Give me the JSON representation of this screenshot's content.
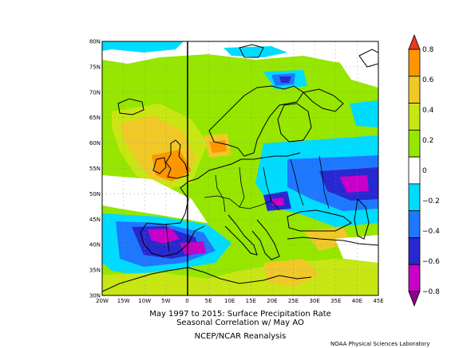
{
  "caption": {
    "line1": "May 1997 to 2015: Surface Precipitation Rate",
    "line2": "Seasonal Correlation w/ May AO",
    "line3": "NCEP/NCAR Reanalysis"
  },
  "credit": "NOAA Physical Sciences Laboratory",
  "map": {
    "lat_labels": [
      "80N",
      "75N",
      "70N",
      "65N",
      "60N",
      "55N",
      "50N",
      "45N",
      "40N",
      "35N",
      "30N"
    ],
    "lon_labels": [
      "20W",
      "15W",
      "10W",
      "5W",
      "0",
      "5E",
      "10E",
      "15E",
      "20E",
      "25E",
      "30E",
      "35E",
      "40E",
      "45E"
    ],
    "lat_range": [
      30,
      80
    ],
    "lon_range": [
      -20,
      45
    ],
    "grid": "dotted",
    "colors": {
      "land_outline": "#000000",
      "levels": [
        "#8b008b",
        "#c800c8",
        "#2828d0",
        "#1e78ff",
        "#00dcff",
        "#ffffff",
        "#96e600",
        "#c8e614",
        "#f0c828",
        "#ff9600",
        "#e63c1e"
      ]
    }
  },
  "colorbar": {
    "labels": [
      "0.8",
      "0.6",
      "0.4",
      "0.2",
      "0",
      "−0.2",
      "−0.4",
      "−0.6",
      "−0.8"
    ],
    "colors": [
      "#e63c1e",
      "#ff9600",
      "#f0c828",
      "#c8e614",
      "#96e600",
      "#ffffff",
      "#00dcff",
      "#1e78ff",
      "#2828d0",
      "#c800c8",
      "#8b008b"
    ]
  }
}
